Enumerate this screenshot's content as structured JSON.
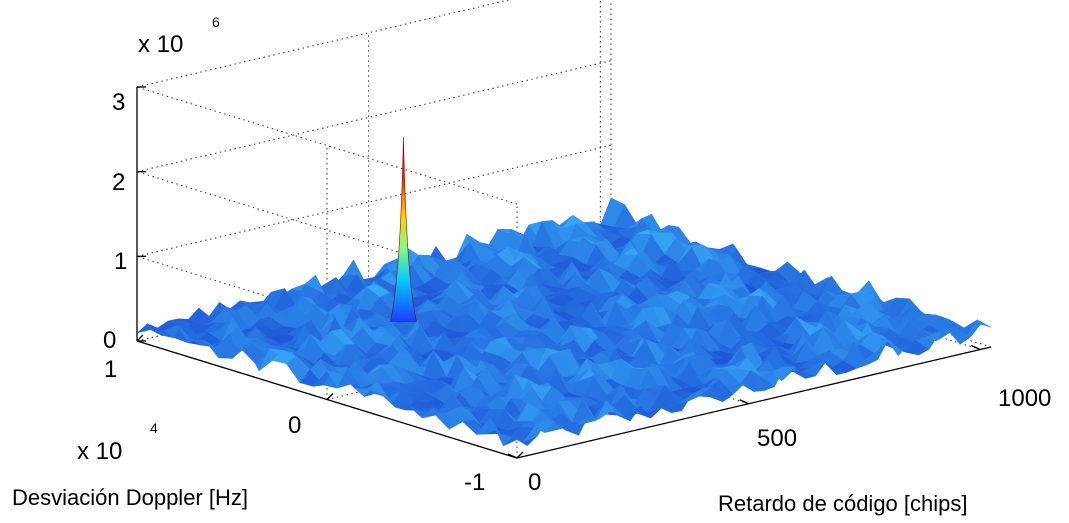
{
  "chart_data": {
    "type": "surface",
    "title": "",
    "xlabel": "Retardo de código [chips]",
    "ylabel": "Desviación Doppler [Hz]",
    "zlabel": "",
    "x_ticks": [
      "0",
      "500",
      "1000"
    ],
    "y_ticks": [
      "-1",
      "0",
      "1"
    ],
    "y_scale_label": "x 10",
    "y_scale_exponent": "4",
    "z_ticks": [
      "0",
      "1",
      "2",
      "3"
    ],
    "z_scale_label": "x 10",
    "z_scale_exponent": "6",
    "xlim": [
      0,
      1023
    ],
    "ylim": [
      -10000,
      10000
    ],
    "zlim": [
      0,
      3000000
    ],
    "grid": true,
    "colormap": "jet",
    "noise_floor": 150000,
    "noise_max": 380000,
    "peak": {
      "x": 370,
      "y": 5000,
      "z": 2280000
    }
  }
}
